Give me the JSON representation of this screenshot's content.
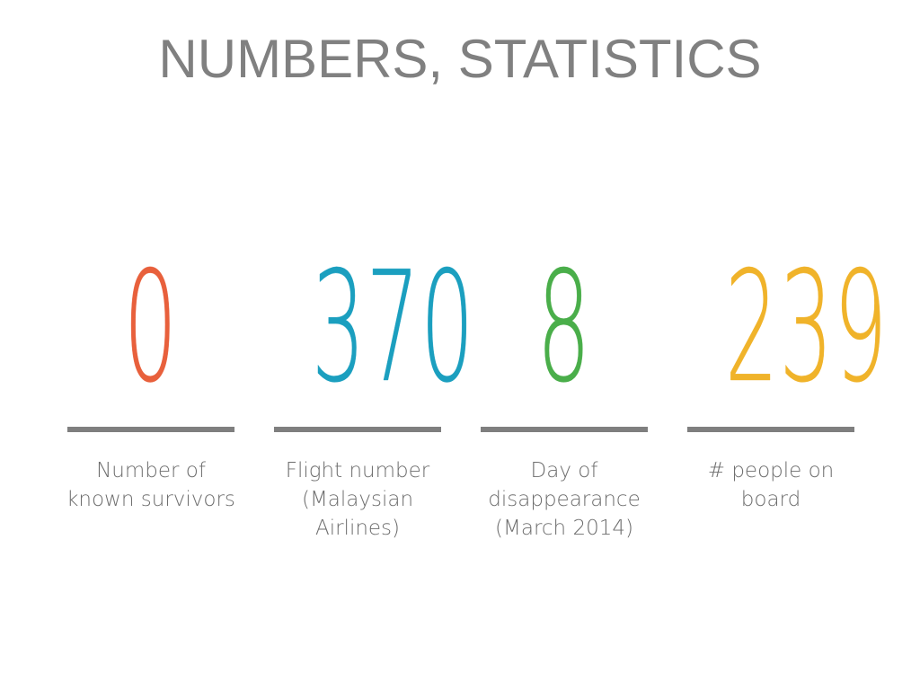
{
  "title": "NUMBERS, STATISTICS",
  "stats": [
    {
      "value": "0",
      "color": "#e8603c",
      "label_lines": [
        "Number of",
        "known survivors"
      ]
    },
    {
      "value": "370",
      "color": "#1b9fbf",
      "label_lines": [
        "Flight number",
        "(Malaysian",
        "Airlines)"
      ]
    },
    {
      "value": "8",
      "color": "#4aae4a",
      "label_lines": [
        "Day of",
        "disappearance",
        "(March 2014)"
      ]
    },
    {
      "value": "239",
      "color": "#f0b32a",
      "label_lines": [
        "# people on",
        "board"
      ]
    }
  ]
}
